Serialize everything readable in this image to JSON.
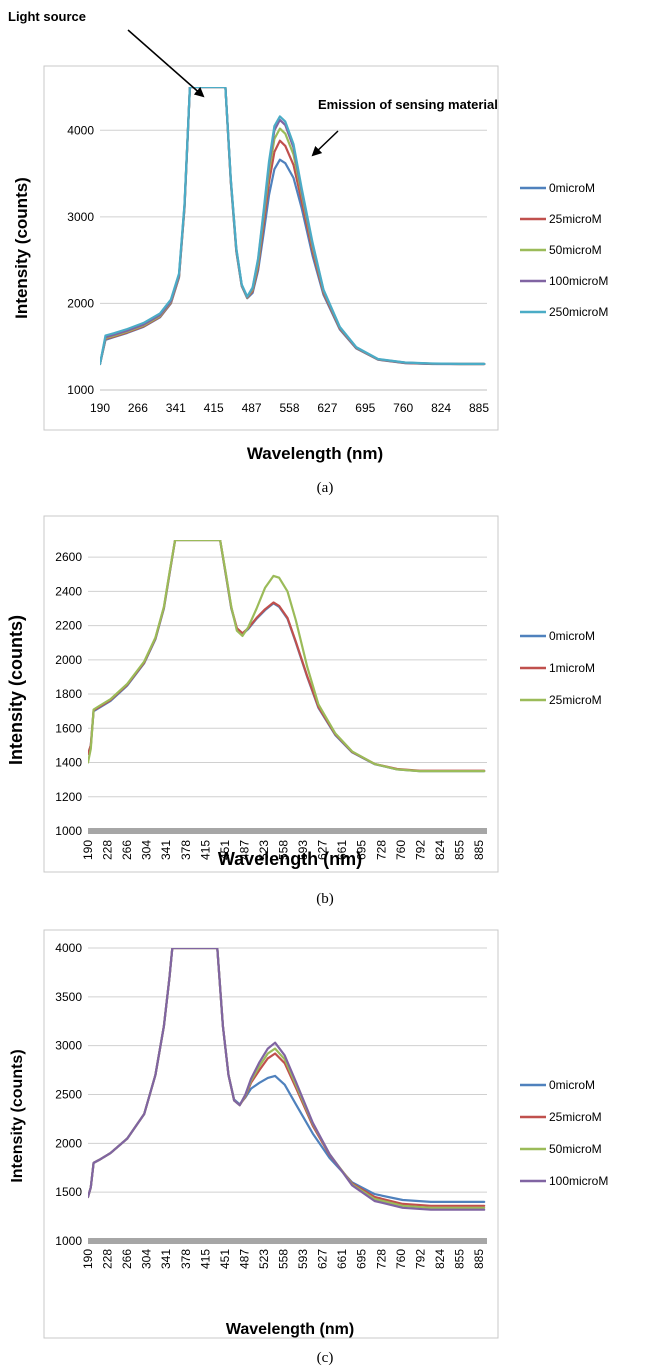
{
  "chart_data": [
    {
      "panel": "a",
      "type": "line",
      "caption": "(a)",
      "xlabel": "Wavelength (nm)",
      "ylabel": "Intensity (counts)",
      "x_ticks": [
        "190",
        "266",
        "341",
        "415",
        "487",
        "558",
        "627",
        "695",
        "760",
        "824",
        "885"
      ],
      "y_ticks": [
        "1000",
        "2000",
        "3000",
        "4000"
      ],
      "xlim": [
        190,
        900
      ],
      "ylim": [
        1000,
        4500
      ],
      "grid": "horizontal",
      "legend_position": "right",
      "annotations": [
        {
          "text": "Light source",
          "target_x": 395,
          "target_y": 4450
        },
        {
          "text": "Emission of sensing material",
          "target_x": 545,
          "target_y": 3900
        }
      ],
      "x": [
        190,
        200,
        215,
        240,
        270,
        300,
        320,
        335,
        345,
        355,
        365,
        375,
        385,
        395,
        405,
        412,
        420,
        430,
        440,
        450,
        460,
        470,
        480,
        490,
        500,
        510,
        520,
        530,
        545,
        560,
        580,
        600,
        630,
        660,
        700,
        750,
        800,
        850,
        895
      ],
      "series": [
        {
          "name": "0microM",
          "color": "#4f81bd",
          "y": [
            1300,
            1580,
            1610,
            1660,
            1730,
            1840,
            2000,
            2300,
            3100,
            4500,
            4500,
            4500,
            4500,
            4500,
            4500,
            4500,
            4500,
            3400,
            2600,
            2200,
            2060,
            2120,
            2380,
            2800,
            3250,
            3550,
            3660,
            3620,
            3450,
            3100,
            2550,
            2100,
            1700,
            1480,
            1350,
            1310,
            1300,
            1300,
            1300
          ]
        },
        {
          "name": "25microM",
          "color": "#c0504d",
          "y": [
            1300,
            1590,
            1615,
            1665,
            1735,
            1845,
            2005,
            2305,
            3110,
            4500,
            4500,
            4500,
            4500,
            4500,
            4500,
            4500,
            4500,
            3410,
            2610,
            2205,
            2065,
            2140,
            2420,
            2900,
            3400,
            3750,
            3880,
            3820,
            3600,
            3180,
            2600,
            2120,
            1710,
            1485,
            1352,
            1312,
            1302,
            1300,
            1300
          ]
        },
        {
          "name": "50microM",
          "color": "#9bbb59",
          "y": [
            1300,
            1600,
            1625,
            1675,
            1745,
            1855,
            2015,
            2315,
            3120,
            4500,
            4500,
            4500,
            4500,
            4500,
            4500,
            4500,
            4500,
            3420,
            2620,
            2210,
            2070,
            2160,
            2460,
            2980,
            3520,
            3900,
            4020,
            3960,
            3720,
            3260,
            2650,
            2140,
            1720,
            1490,
            1355,
            1315,
            1304,
            1300,
            1300
          ]
        },
        {
          "name": "100microM",
          "color": "#8064a2",
          "y": [
            1300,
            1610,
            1635,
            1685,
            1755,
            1865,
            2025,
            2325,
            3130,
            4500,
            4500,
            4500,
            4500,
            4500,
            4500,
            4500,
            4500,
            3430,
            2630,
            2215,
            2075,
            2175,
            2500,
            3030,
            3600,
            4000,
            4120,
            4060,
            3800,
            3300,
            2680,
            2150,
            1725,
            1492,
            1356,
            1316,
            1304,
            1300,
            1300
          ]
        },
        {
          "name": "250microM",
          "color": "#4bacc6",
          "y": [
            1300,
            1630,
            1655,
            1705,
            1775,
            1885,
            2045,
            2345,
            3150,
            4500,
            4500,
            4500,
            4500,
            4500,
            4500,
            4500,
            4500,
            3440,
            2640,
            2220,
            2080,
            2185,
            2520,
            3060,
            3640,
            4050,
            4160,
            4100,
            3840,
            3330,
            2700,
            2160,
            1730,
            1495,
            1358,
            1318,
            1306,
            1302,
            1302
          ]
        }
      ]
    },
    {
      "panel": "b",
      "type": "line",
      "caption": "(b)",
      "xlabel": "Wavelength (nm)",
      "ylabel": "Intensity (counts)",
      "x_ticks": [
        "190",
        "228",
        "266",
        "304",
        "341",
        "378",
        "415",
        "451",
        "487",
        "523",
        "558",
        "593",
        "627",
        "661",
        "695",
        "728",
        "760",
        "792",
        "824",
        "855",
        "885"
      ],
      "y_ticks": [
        "1000",
        "1200",
        "1400",
        "1600",
        "1800",
        "2000",
        "2200",
        "2400",
        "2600"
      ],
      "xlim": [
        190,
        900
      ],
      "ylim": [
        1000,
        2700
      ],
      "grid": "horizontal",
      "legend_position": "right",
      "x": [
        190,
        195,
        200,
        210,
        230,
        260,
        290,
        310,
        325,
        335,
        345,
        350,
        360,
        380,
        400,
        420,
        425,
        435,
        445,
        455,
        465,
        475,
        490,
        505,
        520,
        530,
        545,
        560,
        580,
        600,
        630,
        660,
        700,
        740,
        780,
        820,
        860,
        895
      ],
      "series": [
        {
          "name": "0microM",
          "color": "#4f81bd",
          "y": [
            1450,
            1500,
            1700,
            1720,
            1760,
            1850,
            1980,
            2120,
            2300,
            2500,
            2700,
            2700,
            2700,
            2700,
            2700,
            2700,
            2700,
            2500,
            2300,
            2180,
            2150,
            2180,
            2240,
            2290,
            2330,
            2310,
            2240,
            2100,
            1900,
            1720,
            1560,
            1460,
            1390,
            1360,
            1350,
            1350,
            1350,
            1350
          ]
        },
        {
          "name": "1microM",
          "color": "#c0504d",
          "y": [
            1450,
            1500,
            1705,
            1725,
            1765,
            1855,
            1985,
            2125,
            2305,
            2505,
            2700,
            2700,
            2700,
            2700,
            2700,
            2700,
            2700,
            2505,
            2305,
            2185,
            2155,
            2185,
            2245,
            2295,
            2335,
            2315,
            2245,
            2105,
            1905,
            1725,
            1565,
            1462,
            1392,
            1362,
            1352,
            1352,
            1352,
            1352
          ]
        },
        {
          "name": "25microM",
          "color": "#9bbb59",
          "y": [
            1400,
            1480,
            1710,
            1730,
            1770,
            1860,
            1990,
            2130,
            2310,
            2510,
            2700,
            2700,
            2700,
            2700,
            2700,
            2700,
            2700,
            2510,
            2310,
            2170,
            2140,
            2190,
            2300,
            2420,
            2490,
            2480,
            2400,
            2230,
            1960,
            1740,
            1570,
            1465,
            1392,
            1360,
            1350,
            1350,
            1350,
            1350
          ]
        }
      ]
    },
    {
      "panel": "c",
      "type": "line",
      "caption": "(c)",
      "xlabel": "Wavelength (nm)",
      "ylabel": "Intensity (counts)",
      "x_ticks": [
        "190",
        "228",
        "266",
        "304",
        "341",
        "378",
        "415",
        "451",
        "487",
        "523",
        "558",
        "593",
        "627",
        "661",
        "695",
        "728",
        "760",
        "792",
        "824",
        "855",
        "885"
      ],
      "y_ticks": [
        "1000",
        "1500",
        "2000",
        "2500",
        "3000",
        "3500",
        "4000"
      ],
      "xlim": [
        190,
        900
      ],
      "ylim": [
        1000,
        4000
      ],
      "grid": "horizontal",
      "legend_position": "right",
      "x": [
        190,
        195,
        200,
        210,
        230,
        260,
        290,
        310,
        325,
        335,
        340,
        345,
        360,
        380,
        400,
        415,
        420,
        430,
        440,
        450,
        460,
        470,
        480,
        495,
        510,
        523,
        540,
        560,
        590,
        620,
        660,
        700,
        750,
        800,
        850,
        895
      ],
      "series": [
        {
          "name": "0microM",
          "color": "#4f81bd",
          "y": [
            1450,
            1550,
            1800,
            1830,
            1900,
            2050,
            2300,
            2700,
            3200,
            3700,
            4000,
            4000,
            4000,
            4000,
            4000,
            4000,
            4000,
            3200,
            2700,
            2450,
            2400,
            2470,
            2560,
            2620,
            2670,
            2690,
            2600,
            2400,
            2100,
            1850,
            1600,
            1480,
            1420,
            1400,
            1400,
            1400
          ]
        },
        {
          "name": "25microM",
          "color": "#c0504d",
          "y": [
            1450,
            1550,
            1800,
            1830,
            1900,
            2050,
            2300,
            2700,
            3200,
            3700,
            4000,
            4000,
            4000,
            4000,
            4000,
            4000,
            4000,
            3200,
            2700,
            2440,
            2390,
            2480,
            2620,
            2750,
            2870,
            2920,
            2820,
            2570,
            2180,
            1880,
            1590,
            1450,
            1380,
            1360,
            1360,
            1360
          ]
        },
        {
          "name": "50microM",
          "color": "#9bbb59",
          "y": [
            1450,
            1550,
            1800,
            1830,
            1900,
            2050,
            2300,
            2700,
            3200,
            3700,
            4000,
            4000,
            4000,
            4000,
            4000,
            4000,
            4000,
            3200,
            2700,
            2440,
            2390,
            2490,
            2640,
            2790,
            2920,
            2970,
            2860,
            2600,
            2200,
            1890,
            1580,
            1430,
            1360,
            1340,
            1340,
            1340
          ]
        },
        {
          "name": "100microM",
          "color": "#8064a2",
          "y": [
            1450,
            1550,
            1800,
            1830,
            1900,
            2050,
            2300,
            2700,
            3200,
            3700,
            4000,
            4000,
            4000,
            4000,
            4000,
            4000,
            4000,
            3200,
            2700,
            2440,
            2390,
            2500,
            2660,
            2830,
            2970,
            3030,
            2900,
            2630,
            2210,
            1890,
            1570,
            1410,
            1340,
            1320,
            1320,
            1320
          ]
        }
      ]
    }
  ]
}
